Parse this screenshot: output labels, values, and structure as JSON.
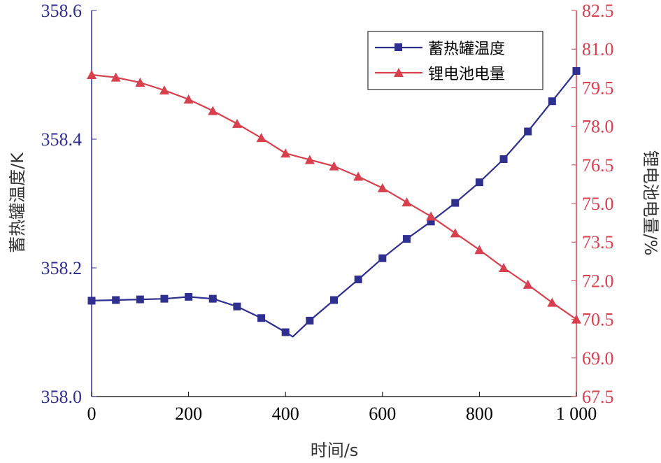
{
  "chart_data": {
    "type": "line",
    "xlabel": "时间/s",
    "ylabel_left": "蓄热罐温度/K",
    "ylabel_right": "锂电池电量/%",
    "xlim": [
      0,
      1000
    ],
    "ylim_left": [
      358.0,
      358.6
    ],
    "ylim_right": [
      67.5,
      82.5
    ],
    "x_ticks": [
      0,
      200,
      400,
      600,
      800,
      1000
    ],
    "x_tick_labels": [
      "0",
      "200",
      "400",
      "600",
      "800",
      "1 000"
    ],
    "y_left_ticks": [
      358.0,
      358.2,
      358.4,
      358.6
    ],
    "y_left_tick_labels": [
      "358.0",
      "358.2",
      "358.4",
      "358.6"
    ],
    "y_right_ticks": [
      67.5,
      69.0,
      70.5,
      72.0,
      73.5,
      75.0,
      76.5,
      78.0,
      79.5,
      81.0,
      82.5
    ],
    "y_right_tick_labels": [
      "67.5",
      "69.0",
      "70.5",
      "72.0",
      "73.5",
      "75.0",
      "76.5",
      "78.0",
      "79.5",
      "81.0",
      "82.5"
    ],
    "grid": false,
    "legend_position": "top-right",
    "colors": {
      "left": "#2e2f8f",
      "right": "#d9404d"
    },
    "series": [
      {
        "name": "蓄热罐温度",
        "axis": "left",
        "marker": "square",
        "x": [
          0,
          50,
          100,
          150,
          200,
          250,
          300,
          350,
          400,
          415,
          450,
          500,
          550,
          600,
          650,
          700,
          750,
          800,
          850,
          900,
          950,
          1000
        ],
        "y": [
          358.149,
          358.15,
          358.151,
          358.152,
          358.155,
          358.152,
          358.14,
          358.122,
          358.1,
          358.093,
          358.118,
          358.15,
          358.182,
          358.215,
          358.245,
          358.272,
          358.301,
          358.333,
          358.369,
          358.412,
          358.459,
          358.506
        ],
        "marker_indices": [
          0,
          1,
          2,
          3,
          4,
          5,
          6,
          7,
          8,
          10,
          11,
          12,
          13,
          14,
          15,
          16,
          17,
          18,
          19,
          20,
          21
        ]
      },
      {
        "name": "锂电池电量",
        "axis": "right",
        "marker": "triangle",
        "x": [
          0,
          50,
          100,
          150,
          200,
          250,
          300,
          350,
          400,
          450,
          500,
          550,
          600,
          650,
          700,
          750,
          800,
          850,
          900,
          950,
          1000
        ],
        "y": [
          80.0,
          79.9,
          79.7,
          79.4,
          79.05,
          78.6,
          78.1,
          77.55,
          76.95,
          76.7,
          76.45,
          76.05,
          75.6,
          75.05,
          74.5,
          73.85,
          73.2,
          72.5,
          71.85,
          71.15,
          70.5
        ]
      }
    ]
  }
}
